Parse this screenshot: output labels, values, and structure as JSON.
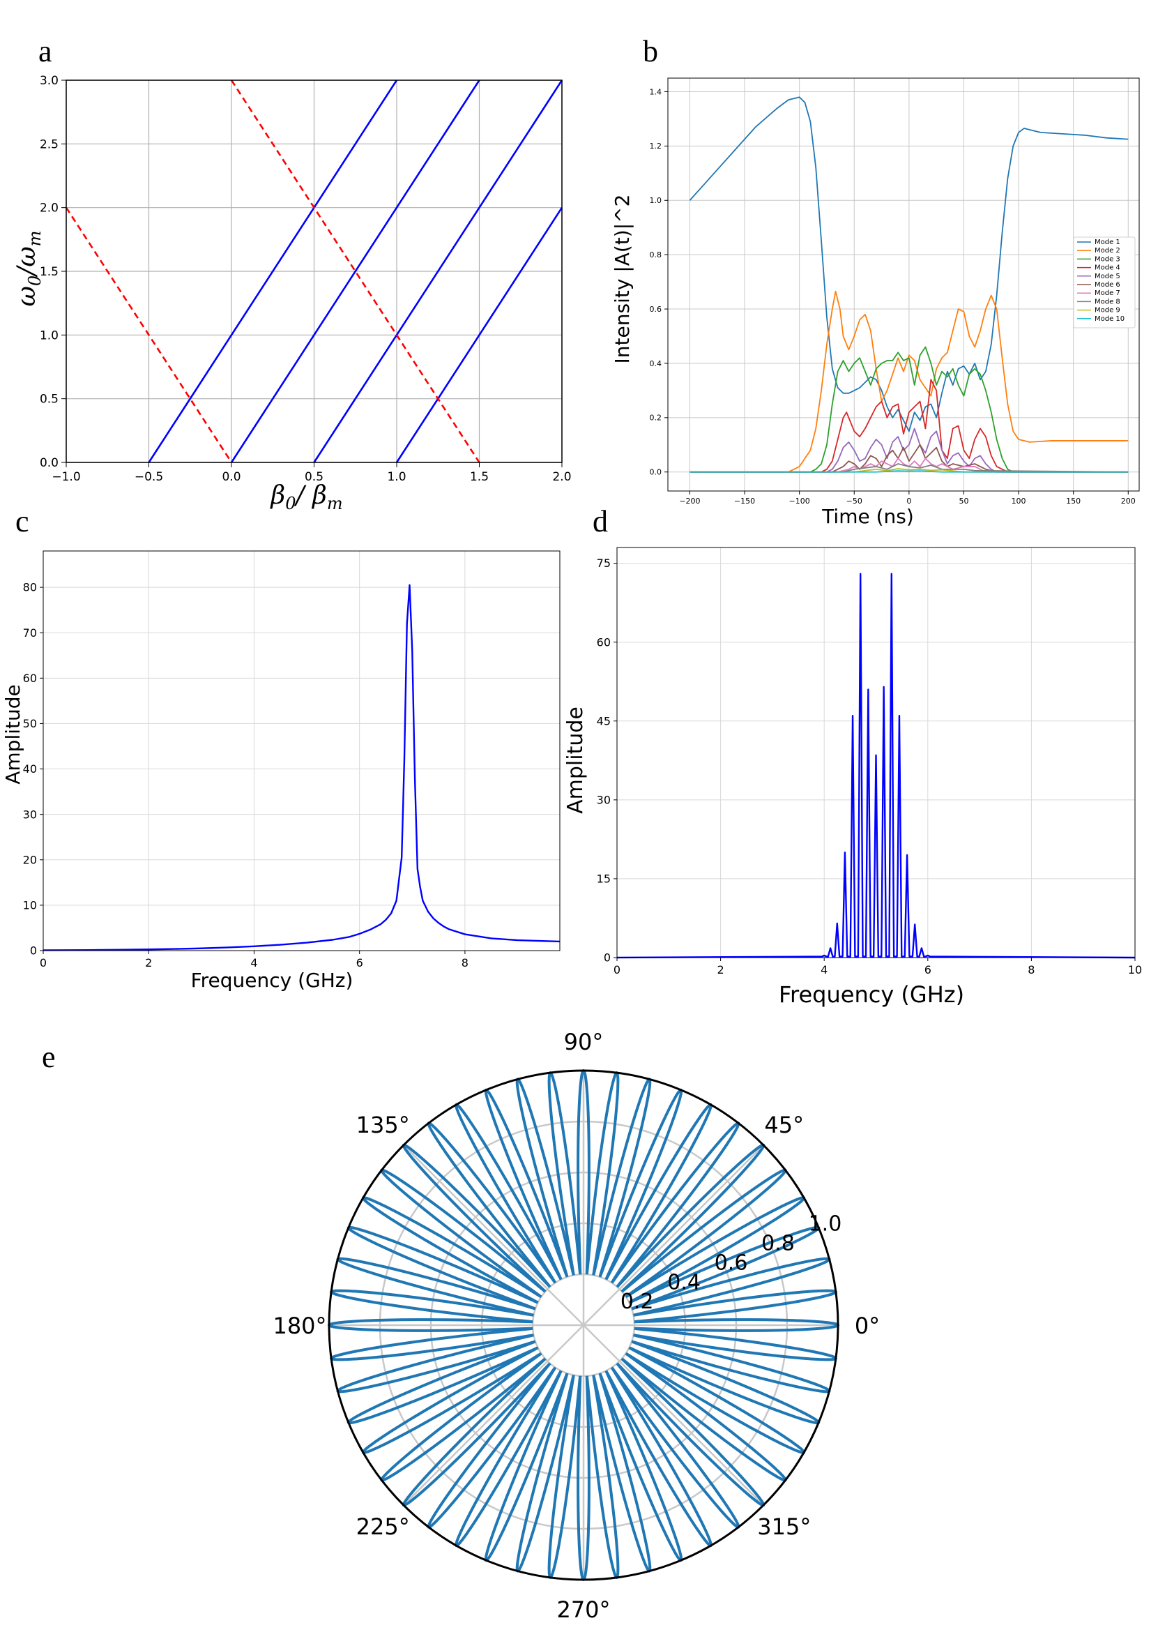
{
  "panel_labels": [
    "a",
    "b",
    "c",
    "d",
    "e"
  ],
  "chart_data": [
    {
      "panel": "a",
      "type": "line",
      "xlabel_main": "β",
      "xlabel_sub1": "0",
      "xlabel_sep": "/ ",
      "xlabel_main2": "β",
      "xlabel_sub2": "m",
      "ylabel_main": "ω",
      "ylabel_sub1": "0",
      "ylabel_sep": "/",
      "ylabel_main2": "ω",
      "ylabel_sub2": "m",
      "xlim": [
        -1.0,
        2.0
      ],
      "ylim": [
        0.0,
        3.0
      ],
      "xticks": [
        "−1.0",
        "−0.5",
        "0.0",
        "0.5",
        "1.0",
        "1.5",
        "2.0"
      ],
      "xtick_values": [
        -1.0,
        -0.5,
        0.0,
        0.5,
        1.0,
        1.5,
        2.0
      ],
      "yticks": [
        "0.0",
        "0.5",
        "1.0",
        "1.5",
        "2.0",
        "2.5",
        "3.0"
      ],
      "ytick_values": [
        0.0,
        0.5,
        1.0,
        1.5,
        2.0,
        2.5,
        3.0
      ],
      "grid": true,
      "series": [
        {
          "style": "solid",
          "color": "#0000ff",
          "x": [
            -0.5,
            1.0
          ],
          "y": [
            0.0,
            3.0
          ]
        },
        {
          "style": "solid",
          "color": "#0000ff",
          "x": [
            0.0,
            1.5
          ],
          "y": [
            0.0,
            3.0
          ]
        },
        {
          "style": "solid",
          "color": "#0000ff",
          "x": [
            0.5,
            2.0
          ],
          "y": [
            0.0,
            3.0
          ]
        },
        {
          "style": "solid",
          "color": "#0000ff",
          "x": [
            1.0,
            2.0
          ],
          "y": [
            0.0,
            2.0
          ]
        },
        {
          "style": "dashed",
          "color": "#ff0000",
          "x": [
            -1.0,
            0.0
          ],
          "y": [
            2.0,
            0.0
          ]
        },
        {
          "style": "dashed",
          "color": "#ff0000",
          "x": [
            0.0,
            1.5
          ],
          "y": [
            3.0,
            0.0
          ]
        }
      ]
    },
    {
      "panel": "b",
      "type": "line",
      "xlabel": "Time (ns)",
      "ylabel": "Intensity |A(t)|^2",
      "xlim": [
        -220,
        210
      ],
      "ylim": [
        -0.07,
        1.45
      ],
      "xticks": [
        "−200",
        "−150",
        "−100",
        "−50",
        "0",
        "50",
        "100",
        "150",
        "200"
      ],
      "xtick_values": [
        -200,
        -150,
        -100,
        -50,
        0,
        50,
        100,
        150,
        200
      ],
      "yticks": [
        "0.0",
        "0.2",
        "0.4",
        "0.6",
        "0.8",
        "1.0",
        "1.2",
        "1.4"
      ],
      "ytick_values": [
        0.0,
        0.2,
        0.4,
        0.6,
        0.8,
        1.0,
        1.2,
        1.4
      ],
      "grid": true,
      "legend_position": "center-right",
      "series": [
        {
          "name": "Mode 1",
          "color": "#1f77b4",
          "x": [
            -200,
            -180,
            -160,
            -140,
            -120,
            -110,
            -100,
            -95,
            -90,
            -85,
            -80,
            -75,
            -70,
            -65,
            -60,
            -55,
            -50,
            -45,
            -40,
            -35,
            -30,
            -25,
            -20,
            -15,
            -10,
            -5,
            0,
            5,
            10,
            15,
            20,
            25,
            30,
            35,
            40,
            45,
            50,
            55,
            60,
            65,
            70,
            75,
            80,
            85,
            90,
            95,
            100,
            105,
            110,
            120,
            140,
            160,
            180,
            200
          ],
          "y": [
            1.0,
            1.09,
            1.18,
            1.27,
            1.34,
            1.37,
            1.38,
            1.36,
            1.29,
            1.12,
            0.85,
            0.57,
            0.38,
            0.31,
            0.29,
            0.29,
            0.3,
            0.31,
            0.33,
            0.35,
            0.34,
            0.3,
            0.24,
            0.2,
            0.23,
            0.19,
            0.15,
            0.22,
            0.19,
            0.24,
            0.25,
            0.2,
            0.29,
            0.37,
            0.32,
            0.38,
            0.39,
            0.36,
            0.4,
            0.34,
            0.37,
            0.47,
            0.65,
            0.88,
            1.08,
            1.2,
            1.25,
            1.265,
            1.26,
            1.25,
            1.245,
            1.24,
            1.23,
            1.225
          ]
        },
        {
          "name": "Mode 2",
          "color": "#ff7f0e",
          "x": [
            -200,
            -110,
            -100,
            -90,
            -85,
            -80,
            -75,
            -70,
            -67,
            -63,
            -60,
            -55,
            -50,
            -45,
            -40,
            -35,
            -30,
            -25,
            -20,
            -15,
            -10,
            -5,
            0,
            5,
            10,
            15,
            20,
            25,
            30,
            35,
            40,
            45,
            50,
            55,
            60,
            65,
            70,
            75,
            80,
            85,
            90,
            95,
            100,
            110,
            130,
            150,
            170,
            200
          ],
          "y": [
            0.0,
            0.0,
            0.02,
            0.08,
            0.16,
            0.3,
            0.47,
            0.6,
            0.665,
            0.6,
            0.5,
            0.45,
            0.5,
            0.56,
            0.58,
            0.52,
            0.38,
            0.26,
            0.3,
            0.36,
            0.42,
            0.37,
            0.43,
            0.41,
            0.34,
            0.31,
            0.28,
            0.38,
            0.42,
            0.44,
            0.52,
            0.6,
            0.59,
            0.5,
            0.46,
            0.52,
            0.6,
            0.65,
            0.6,
            0.42,
            0.25,
            0.15,
            0.12,
            0.11,
            0.115,
            0.115,
            0.115,
            0.115
          ]
        },
        {
          "name": "Mode 3",
          "color": "#2ca02c",
          "x": [
            -200,
            -100,
            -90,
            -85,
            -80,
            -75,
            -70,
            -65,
            -60,
            -55,
            -50,
            -45,
            -40,
            -35,
            -30,
            -25,
            -20,
            -15,
            -10,
            -5,
            0,
            5,
            10,
            15,
            20,
            25,
            30,
            35,
            40,
            45,
            50,
            55,
            60,
            65,
            70,
            75,
            80,
            85,
            90,
            95,
            100,
            120,
            200
          ],
          "y": [
            0.0,
            0.0,
            0.0,
            0.01,
            0.03,
            0.1,
            0.25,
            0.37,
            0.41,
            0.37,
            0.4,
            0.42,
            0.37,
            0.32,
            0.38,
            0.4,
            0.41,
            0.41,
            0.44,
            0.41,
            0.42,
            0.32,
            0.43,
            0.46,
            0.4,
            0.32,
            0.37,
            0.35,
            0.38,
            0.32,
            0.28,
            0.36,
            0.38,
            0.36,
            0.3,
            0.22,
            0.12,
            0.05,
            0.01,
            0.0,
            0.0,
            0.0,
            0.0
          ]
        },
        {
          "name": "Mode 4",
          "color": "#d62728",
          "x": [
            -200,
            -90,
            -80,
            -75,
            -70,
            -65,
            -60,
            -57,
            -55,
            -50,
            -45,
            -40,
            -35,
            -30,
            -25,
            -20,
            -15,
            -10,
            -5,
            0,
            5,
            10,
            15,
            20,
            25,
            30,
            35,
            40,
            45,
            50,
            55,
            60,
            65,
            70,
            75,
            80,
            90,
            200
          ],
          "y": [
            0.0,
            0.0,
            0.0,
            0.01,
            0.04,
            0.12,
            0.2,
            0.22,
            0.2,
            0.15,
            0.13,
            0.16,
            0.2,
            0.24,
            0.26,
            0.2,
            0.24,
            0.25,
            0.14,
            0.22,
            0.24,
            0.26,
            0.16,
            0.34,
            0.3,
            0.08,
            0.05,
            0.16,
            0.17,
            0.08,
            0.05,
            0.12,
            0.16,
            0.13,
            0.06,
            0.02,
            0.0,
            0.0
          ]
        },
        {
          "name": "Mode 5",
          "color": "#9467bd",
          "x": [
            -200,
            -75,
            -70,
            -65,
            -60,
            -55,
            -50,
            -45,
            -40,
            -35,
            -30,
            -25,
            -20,
            -15,
            -10,
            -5,
            0,
            5,
            10,
            15,
            20,
            25,
            30,
            35,
            40,
            45,
            50,
            55,
            60,
            65,
            70,
            75,
            80,
            200
          ],
          "y": [
            0.0,
            0.0,
            0.01,
            0.04,
            0.09,
            0.11,
            0.08,
            0.04,
            0.05,
            0.09,
            0.12,
            0.1,
            0.05,
            0.11,
            0.13,
            0.08,
            0.1,
            0.16,
            0.1,
            0.07,
            0.13,
            0.15,
            0.08,
            0.03,
            0.06,
            0.07,
            0.04,
            0.02,
            0.05,
            0.06,
            0.03,
            0.01,
            0.0,
            0.0
          ]
        },
        {
          "name": "Mode 6",
          "color": "#8c564b",
          "x": [
            -200,
            -70,
            -60,
            -55,
            -50,
            -45,
            -40,
            -35,
            -30,
            -25,
            -20,
            -15,
            -10,
            -5,
            0,
            5,
            10,
            15,
            20,
            25,
            30,
            35,
            40,
            50,
            60,
            65,
            70,
            80,
            200
          ],
          "y": [
            0.0,
            0.0,
            0.02,
            0.04,
            0.03,
            0.01,
            0.03,
            0.06,
            0.05,
            0.02,
            0.06,
            0.08,
            0.05,
            0.09,
            0.04,
            0.07,
            0.1,
            0.05,
            0.07,
            0.09,
            0.04,
            0.02,
            0.03,
            0.02,
            0.03,
            0.02,
            0.01,
            0.0,
            0.0
          ]
        },
        {
          "name": "Mode 7",
          "color": "#e377c2",
          "x": [
            -200,
            -65,
            -55,
            -50,
            -45,
            -40,
            -35,
            -30,
            -25,
            -20,
            -15,
            -10,
            -5,
            0,
            5,
            10,
            15,
            20,
            25,
            30,
            35,
            40,
            50,
            60,
            70,
            200
          ],
          "y": [
            0.0,
            0.0,
            0.01,
            0.02,
            0.01,
            0.02,
            0.03,
            0.02,
            0.04,
            0.03,
            0.02,
            0.05,
            0.03,
            0.02,
            0.04,
            0.02,
            0.05,
            0.03,
            0.02,
            0.03,
            0.02,
            0.01,
            0.02,
            0.02,
            0.0,
            0.0
          ]
        },
        {
          "name": "Mode 8",
          "color": "#7f7f7f",
          "x": [
            -200,
            -60,
            -50,
            -40,
            -30,
            -20,
            -10,
            0,
            10,
            20,
            30,
            40,
            50,
            60,
            200
          ],
          "y": [
            0.0,
            0.0,
            0.01,
            0.015,
            0.02,
            0.01,
            0.03,
            0.02,
            0.015,
            0.025,
            0.01,
            0.01,
            0.01,
            0.005,
            0.0
          ]
        },
        {
          "name": "Mode 9",
          "color": "#bcbd22",
          "x": [
            -200,
            -50,
            -40,
            -30,
            -20,
            -10,
            0,
            10,
            20,
            30,
            40,
            50,
            200
          ],
          "y": [
            0.0,
            0.0,
            0.005,
            0.01,
            0.005,
            0.012,
            0.008,
            0.01,
            0.006,
            0.008,
            0.004,
            0.0,
            0.0
          ]
        },
        {
          "name": "Mode 10",
          "color": "#17becf",
          "x": [
            -200,
            -30,
            -10,
            0,
            10,
            30,
            200
          ],
          "y": [
            0.0,
            0.0,
            0.004,
            0.003,
            0.004,
            0.0,
            0.0
          ]
        }
      ]
    },
    {
      "panel": "c",
      "type": "line",
      "xlabel": "Frequency (GHz)",
      "ylabel": "Amplitude",
      "xlim": [
        0,
        9.8
      ],
      "ylim": [
        0,
        88
      ],
      "xticks": [
        "0",
        "2",
        "4",
        "6",
        "8"
      ],
      "xtick_values": [
        0,
        2,
        4,
        6,
        8
      ],
      "yticks": [
        "0",
        "10",
        "20",
        "30",
        "40",
        "50",
        "60",
        "70",
        "80"
      ],
      "ytick_values": [
        0,
        10,
        20,
        30,
        40,
        50,
        60,
        70,
        80
      ],
      "grid": true,
      "series": [
        {
          "color": "#0000ff",
          "x": [
            0,
            0.5,
            1,
            1.5,
            2,
            2.5,
            3,
            3.5,
            4,
            4.5,
            5,
            5.5,
            5.8,
            6,
            6.2,
            6.4,
            6.5,
            6.6,
            6.7,
            6.8,
            6.85,
            6.9,
            6.95,
            7.0,
            7.05,
            7.1,
            7.15,
            7.2,
            7.3,
            7.4,
            7.5,
            7.6,
            7.7,
            8,
            8.5,
            9,
            9.8
          ],
          "y": [
            0.08,
            0.1,
            0.14,
            0.2,
            0.27,
            0.37,
            0.5,
            0.7,
            0.95,
            1.3,
            1.75,
            2.4,
            3.0,
            3.7,
            4.6,
            5.8,
            6.8,
            8.2,
            11,
            20.5,
            42,
            72,
            80.5,
            66,
            38,
            18,
            14,
            11,
            8.6,
            7.1,
            6.1,
            5.3,
            4.7,
            3.6,
            2.7,
            2.3,
            2.0
          ]
        }
      ]
    },
    {
      "panel": "d",
      "type": "line",
      "xlabel": "Frequency (GHz)",
      "ylabel": "Amplitude",
      "xlim": [
        0,
        10
      ],
      "ylim": [
        0,
        78
      ],
      "xticks": [
        "0",
        "2",
        "4",
        "6",
        "8",
        "10"
      ],
      "xtick_values": [
        0,
        2,
        4,
        6,
        8,
        10
      ],
      "yticks": [
        "0",
        "15",
        "30",
        "45",
        "60",
        "75"
      ],
      "ytick_values": [
        0,
        15,
        30,
        45,
        60,
        75
      ],
      "grid": true,
      "series": [
        {
          "color": "#0000ff",
          "peaks_x": [
            4.0,
            4.12,
            4.25,
            4.4,
            4.55,
            4.7,
            4.85,
            5.0,
            5.15,
            5.3,
            5.45,
            5.6,
            5.75,
            5.88,
            6.0
          ],
          "peaks_y": [
            0.4,
            1.8,
            6.5,
            20,
            46,
            73,
            51,
            38.5,
            51.5,
            73,
            46,
            19.5,
            6.3,
            1.8,
            0.4
          ]
        }
      ]
    },
    {
      "panel": "e",
      "type": "polar",
      "theta_labels": [
        "0°",
        "45°",
        "90°",
        "135°",
        "180°",
        "225°",
        "270°",
        "315°"
      ],
      "theta_values_deg": [
        0,
        45,
        90,
        135,
        180,
        225,
        270,
        315
      ],
      "r_labels": [
        "0.2",
        "0.4",
        "0.6",
        "0.8",
        "1.0"
      ],
      "r_values": [
        0.2,
        0.4,
        0.6,
        0.8,
        1.0
      ],
      "rlim": [
        0.0,
        1.0
      ],
      "r_label_angle_deg": 22.5,
      "grid": true,
      "series": [
        {
          "color": "#1f77b4",
          "petals": 48,
          "r_min": 0.2,
          "r_max": 1.0
        }
      ]
    }
  ]
}
